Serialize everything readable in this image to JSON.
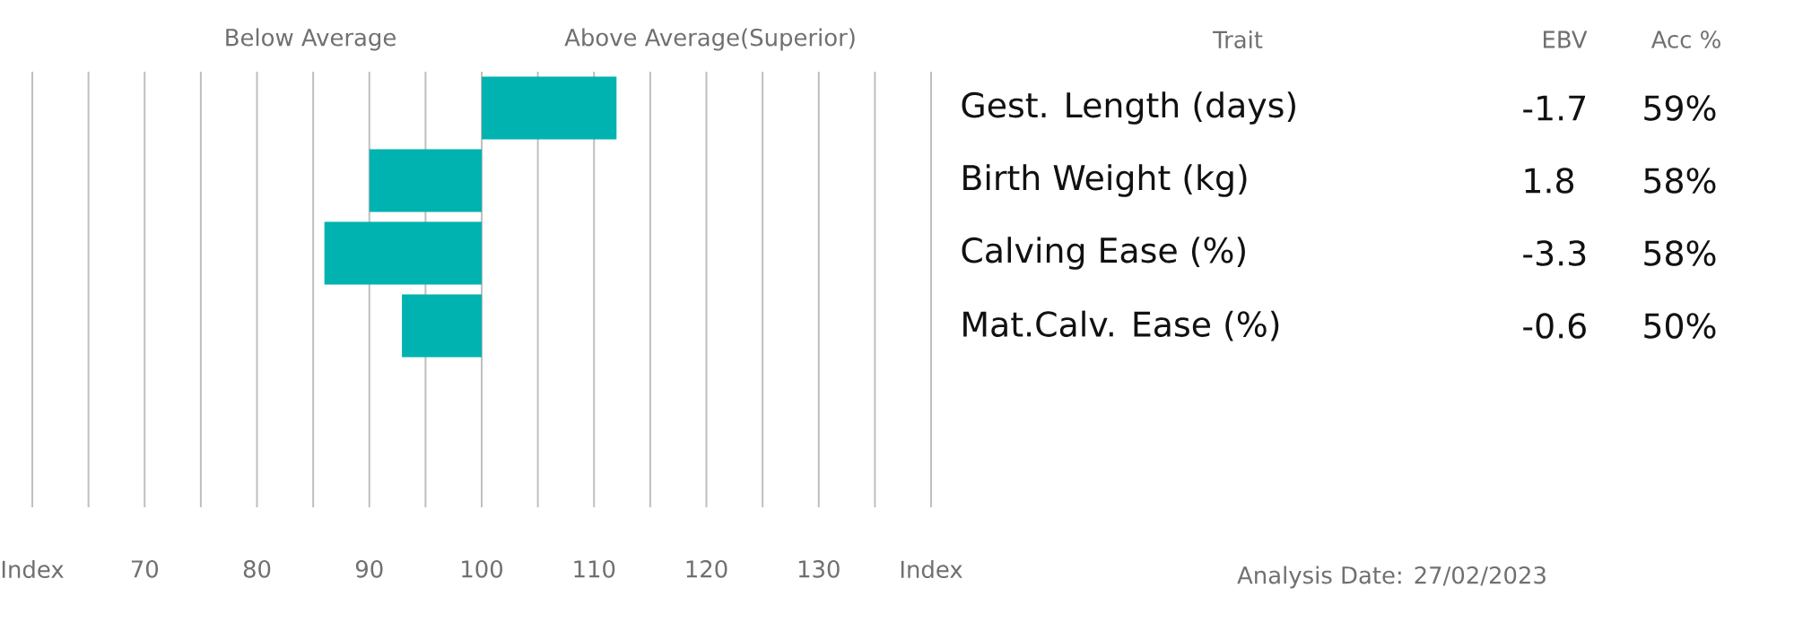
{
  "chart_data": {
    "type": "bar",
    "orientation": "horizontal",
    "categories": [
      "Gest. Length (days)",
      "Birth Weight (kg)",
      "Calving Ease (%)",
      "Mat.Calv. Ease (%)",
      null,
      null
    ],
    "base": [
      100,
      100,
      100,
      100,
      null,
      null
    ],
    "values": [
      12,
      -10,
      -14,
      -7.1,
      null,
      null
    ],
    "color": "#00b2b0",
    "xlim": [
      60,
      140
    ],
    "xticks": [
      {
        "value": 60,
        "label": "Index"
      },
      {
        "value": 65,
        "label": null
      },
      70,
      {
        "value": 75,
        "label": null
      },
      80,
      {
        "value": 85,
        "label": null
      },
      90,
      {
        "value": 95,
        "label": null
      },
      100,
      {
        "value": 105,
        "label": null
      },
      110,
      {
        "value": 115,
        "label": null
      },
      120,
      {
        "value": 125,
        "label": null
      },
      130,
      {
        "value": 135,
        "label": null
      },
      {
        "value": 140,
        "label": "Index"
      }
    ],
    "grid": "x",
    "annotations": [
      "Below Average",
      "Above Average(Superior)",
      "Trait",
      "EBV",
      "Acc %",
      "-1.7",
      "59%",
      "1.8",
      "58%",
      "-3.3",
      "58%",
      "-0.6",
      "50%",
      "Analysis Date: 27/02/2023"
    ]
  }
}
